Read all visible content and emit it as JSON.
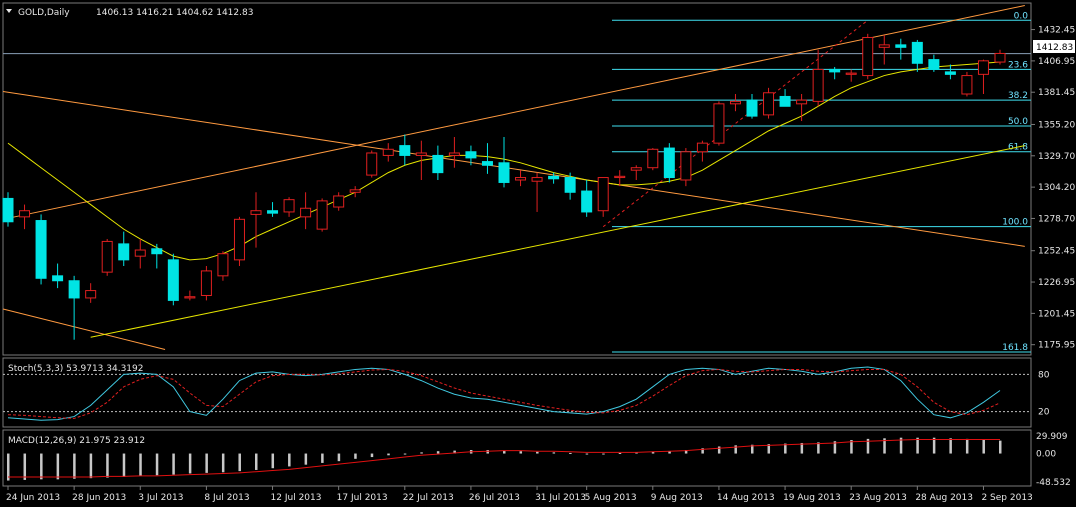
{
  "header": {
    "symbol_label": "GOLD,Daily",
    "ohlc": "1406.13 1416.21 1404.62 1412.83"
  },
  "price_tag": "1412.83",
  "stoch_title": "Stoch(5,3,3) 53.9713 34.3192",
  "macd_title": "MACD(12,26,9) 21.975 23.912",
  "colors": {
    "bull_candle": "#00e5e5",
    "bear_candle": "#e02020",
    "fib": "#40e0f0",
    "channel": "#ff9a40",
    "trend": "#e6e600",
    "ma": "#e6e600",
    "macd_hist": "#c8c8c8",
    "macd_signal": "#e01010",
    "stoch_main": "#40c8e0",
    "stoch_signal": "#e02020"
  },
  "chart_data": [
    {
      "type": "candlestick",
      "name": "price",
      "ylim": [
        1170,
        1450
      ],
      "y_ticks": [
        1432.45,
        1406.95,
        1381.45,
        1355.2,
        1329.7,
        1304.2,
        1278.7,
        1252.45,
        1226.95,
        1201.45,
        1175.95
      ],
      "x_labels": [
        "24 Jun 2013",
        "28 Jun 2013",
        "3 Jul 2013",
        "8 Jul 2013",
        "12 Jul 2013",
        "17 Jul 2013",
        "22 Jul 2013",
        "26 Jul 2013",
        "31 Jul 2013",
        "5 Aug 2013",
        "9 Aug 2013",
        "14 Aug 2013",
        "19 Aug 2013",
        "23 Aug 2013",
        "28 Aug 2013",
        "2 Sep 2013"
      ],
      "ohlc": [
        [
          1295,
          1300,
          1272,
          1276
        ],
        [
          1280,
          1290,
          1270,
          1285
        ],
        [
          1277,
          1282,
          1225,
          1230
        ],
        [
          1232,
          1242,
          1222,
          1228
        ],
        [
          1228,
          1232,
          1180,
          1214
        ],
        [
          1214,
          1226,
          1210,
          1220
        ],
        [
          1235,
          1262,
          1232,
          1260
        ],
        [
          1258,
          1268,
          1240,
          1245
        ],
        [
          1248,
          1262,
          1238,
          1253
        ],
        [
          1254,
          1258,
          1238,
          1250
        ],
        [
          1245,
          1250,
          1208,
          1212
        ],
        [
          1214,
          1220,
          1212,
          1215
        ],
        [
          1216,
          1240,
          1212,
          1236
        ],
        [
          1232,
          1252,
          1228,
          1250
        ],
        [
          1245,
          1280,
          1240,
          1278
        ],
        [
          1282,
          1300,
          1255,
          1285
        ],
        [
          1285,
          1292,
          1280,
          1283
        ],
        [
          1284,
          1296,
          1280,
          1294
        ],
        [
          1280,
          1300,
          1270,
          1287
        ],
        [
          1270,
          1295,
          1268,
          1293
        ],
        [
          1288,
          1300,
          1285,
          1297
        ],
        [
          1300,
          1305,
          1296,
          1302
        ],
        [
          1314,
          1334,
          1312,
          1332
        ],
        [
          1330,
          1340,
          1325,
          1335
        ],
        [
          1338,
          1347,
          1322,
          1330
        ],
        [
          1330,
          1342,
          1310,
          1332
        ],
        [
          1330,
          1338,
          1310,
          1316
        ],
        [
          1330,
          1345,
          1320,
          1332
        ],
        [
          1333,
          1338,
          1322,
          1328
        ],
        [
          1325,
          1340,
          1315,
          1322
        ],
        [
          1324,
          1345,
          1304,
          1308
        ],
        [
          1310,
          1318,
          1305,
          1312
        ],
        [
          1309,
          1316,
          1284,
          1312
        ],
        [
          1313,
          1316,
          1307,
          1311
        ],
        [
          1312,
          1316,
          1294,
          1300
        ],
        [
          1301,
          1310,
          1280,
          1284
        ],
        [
          1285,
          1312,
          1280,
          1312
        ],
        [
          1312,
          1318,
          1305,
          1313
        ],
        [
          1318,
          1322,
          1310,
          1320
        ],
        [
          1320,
          1336,
          1318,
          1335
        ],
        [
          1336,
          1340,
          1308,
          1312
        ],
        [
          1310,
          1336,
          1305,
          1333
        ],
        [
          1333,
          1342,
          1325,
          1340
        ],
        [
          1340,
          1374,
          1338,
          1372
        ],
        [
          1372,
          1380,
          1366,
          1374
        ],
        [
          1375,
          1380,
          1360,
          1362
        ],
        [
          1363,
          1385,
          1360,
          1381
        ],
        [
          1378,
          1384,
          1370,
          1370
        ],
        [
          1372,
          1380,
          1358,
          1375
        ],
        [
          1374,
          1416,
          1370,
          1400
        ],
        [
          1400,
          1402,
          1392,
          1398
        ],
        [
          1396,
          1400,
          1390,
          1397
        ],
        [
          1395,
          1429,
          1392,
          1426
        ],
        [
          1418,
          1428,
          1404,
          1420
        ],
        [
          1420,
          1425,
          1408,
          1418
        ],
        [
          1422,
          1424,
          1398,
          1405
        ],
        [
          1408,
          1412,
          1398,
          1400
        ],
        [
          1398,
          1404,
          1392,
          1396
        ],
        [
          1380,
          1398,
          1378,
          1395
        ],
        [
          1396,
          1408,
          1380,
          1407
        ],
        [
          1406,
          1416,
          1404,
          1413
        ]
      ],
      "moving_average": [
        1340,
        1330,
        1320,
        1310,
        1300,
        1290,
        1280,
        1270,
        1262,
        1255,
        1248,
        1245,
        1246,
        1250,
        1256,
        1264,
        1270,
        1276,
        1282,
        1288,
        1294,
        1300,
        1308,
        1316,
        1322,
        1326,
        1328,
        1330,
        1330,
        1329,
        1327,
        1324,
        1320,
        1316,
        1313,
        1310,
        1308,
        1306,
        1306,
        1307,
        1309,
        1312,
        1318,
        1326,
        1334,
        1342,
        1350,
        1356,
        1362,
        1370,
        1378,
        1385,
        1390,
        1395,
        1398,
        1400,
        1402,
        1403,
        1404,
        1405,
        1406
      ],
      "fibonacci_levels": [
        {
          "label": "0.0",
          "price": 1440
        },
        {
          "label": "23.6",
          "price": 1400
        },
        {
          "label": "38.2",
          "price": 1375
        },
        {
          "label": "50.0",
          "price": 1354
        },
        {
          "label": "61.8",
          "price": 1333
        },
        {
          "label": "100.0",
          "price": 1272
        },
        {
          "label": "161.8",
          "price": 1170
        }
      ],
      "current_price": 1412.83
    },
    {
      "type": "line",
      "name": "Stoch(5,3,3)",
      "ylim": [
        0,
        100
      ],
      "y_ticks": [
        80,
        20
      ],
      "levels": [
        80,
        20
      ],
      "series": [
        {
          "name": "main",
          "values": [
            10,
            8,
            6,
            7,
            12,
            30,
            55,
            80,
            82,
            80,
            60,
            20,
            14,
            40,
            70,
            82,
            84,
            80,
            78,
            80,
            84,
            88,
            90,
            88,
            80,
            70,
            58,
            48,
            42,
            40,
            35,
            30,
            25,
            20,
            18,
            16,
            20,
            28,
            40,
            60,
            80,
            88,
            90,
            88,
            80,
            85,
            90,
            88,
            85,
            80,
            84,
            90,
            92,
            88,
            70,
            40,
            15,
            10,
            18,
            35,
            54
          ]
        },
        {
          "name": "signal",
          "values": [
            15,
            14,
            12,
            10,
            9,
            18,
            35,
            60,
            72,
            78,
            72,
            50,
            30,
            28,
            48,
            68,
            78,
            80,
            80,
            79,
            81,
            84,
            87,
            88,
            85,
            78,
            68,
            58,
            50,
            45,
            40,
            35,
            30,
            26,
            22,
            19,
            18,
            22,
            30,
            45,
            62,
            78,
            86,
            88,
            85,
            84,
            86,
            88,
            88,
            85,
            84,
            86,
            88,
            88,
            80,
            60,
            35,
            20,
            15,
            22,
            34
          ]
        }
      ]
    },
    {
      "type": "bar",
      "name": "MACD(12,26,9)",
      "ylim": [
        -48.532,
        29.909
      ],
      "y_ticks": [
        29.909,
        0.0,
        -48.532
      ],
      "histogram": [
        -46,
        -45,
        -44,
        -44,
        -43,
        -42,
        -41,
        -40,
        -38,
        -37,
        -36,
        -34,
        -33,
        -32,
        -30,
        -28,
        -25,
        -22,
        -19,
        -16,
        -13,
        -9,
        -6,
        -3,
        0,
        2,
        4,
        5,
        6,
        6,
        5,
        4,
        3,
        2,
        1,
        0,
        0,
        1,
        2,
        3,
        4,
        6,
        9,
        12,
        14,
        15,
        16,
        17,
        18,
        19,
        21,
        23,
        25,
        26,
        27,
        27,
        27,
        26,
        25,
        24,
        22
      ],
      "signal": [
        -40,
        -40,
        -40,
        -40,
        -40,
        -40,
        -39,
        -39,
        -38,
        -38,
        -37,
        -36,
        -35,
        -34,
        -33,
        -31,
        -29,
        -27,
        -24,
        -21,
        -18,
        -15,
        -12,
        -9,
        -6,
        -3,
        -1,
        1,
        3,
        4,
        5,
        5,
        4,
        4,
        3,
        2,
        2,
        2,
        2,
        3,
        4,
        5,
        7,
        9,
        11,
        13,
        14,
        15,
        16,
        17,
        18,
        20,
        21,
        22,
        23,
        24,
        24,
        24,
        24,
        24,
        24
      ]
    }
  ]
}
